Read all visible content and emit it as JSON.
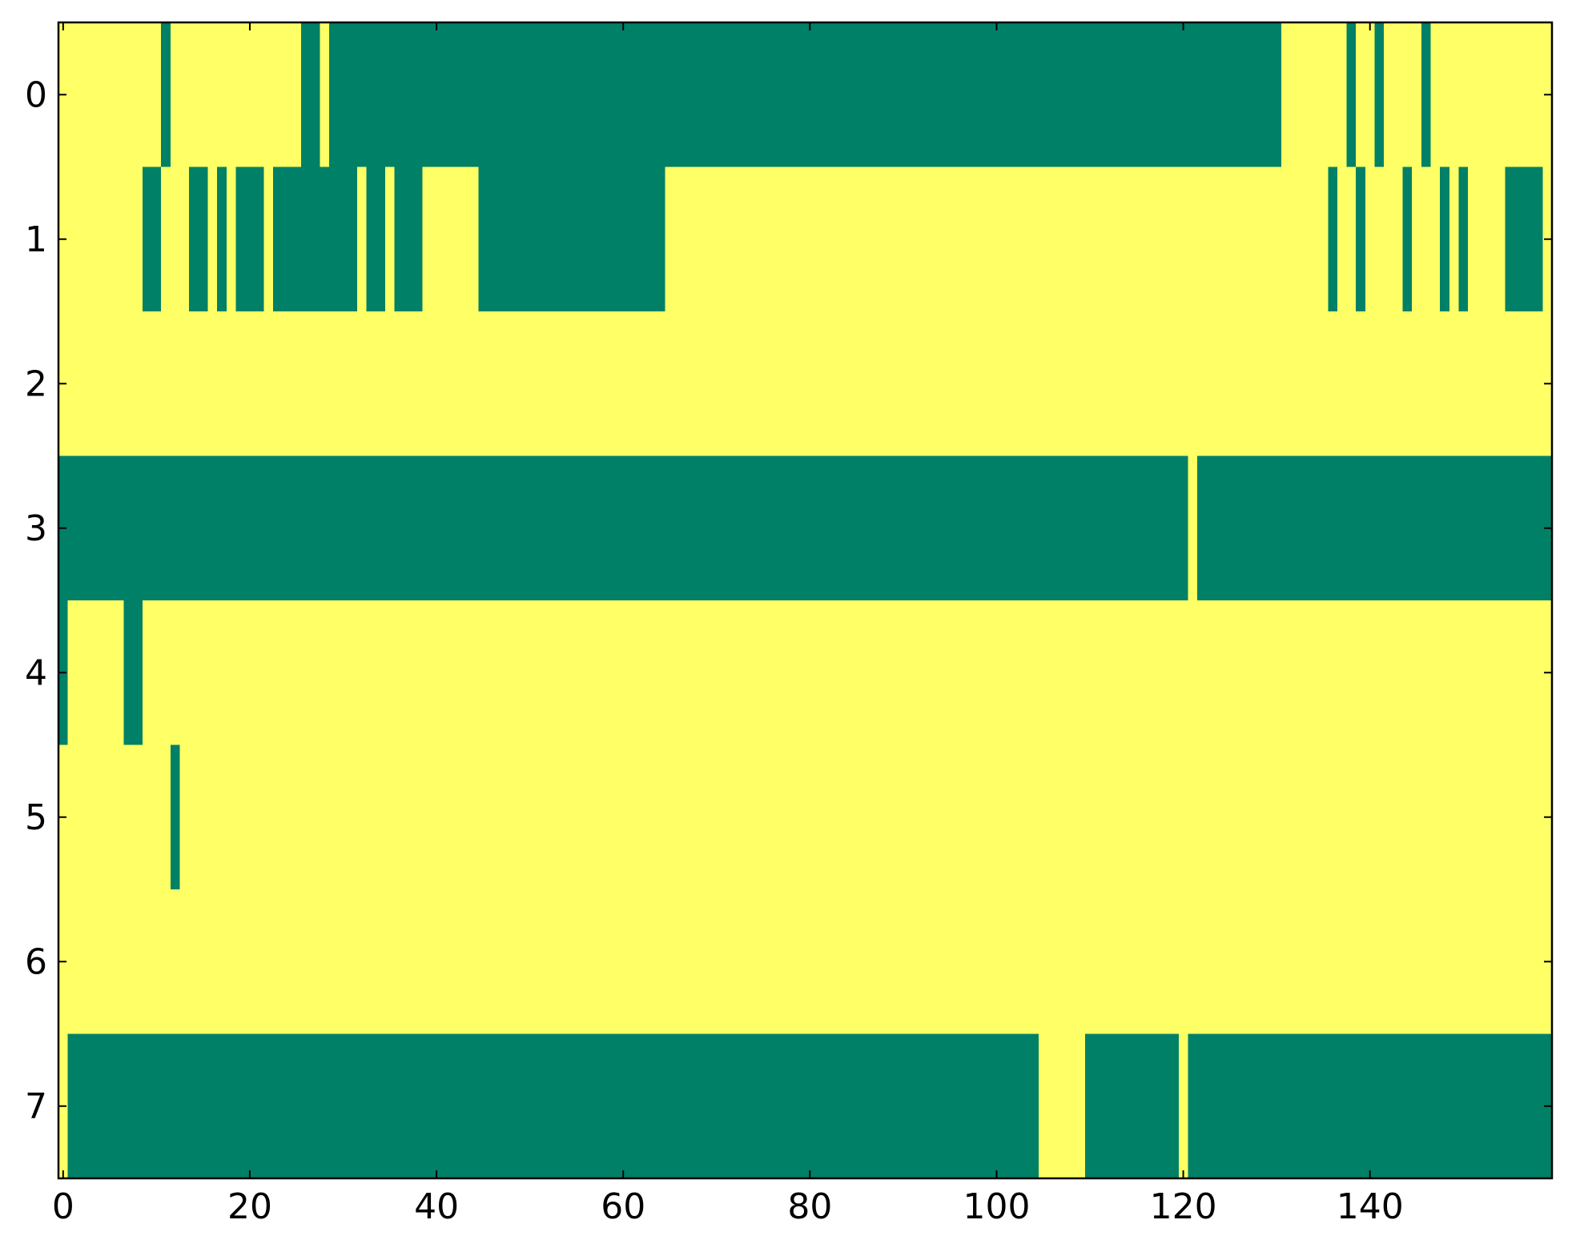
{
  "chart_data": {
    "type": "heatmap",
    "xlim": [
      -0.5,
      159.5
    ],
    "ylim": [
      7.5,
      -0.5
    ],
    "xticks": [
      0,
      20,
      40,
      60,
      80,
      100,
      120,
      140
    ],
    "yticks": [
      0,
      1,
      2,
      3,
      4,
      5,
      6,
      7
    ],
    "colormap": [
      "#008066",
      "#ffff66"
    ],
    "z": [
      [
        1,
        1,
        1,
        1,
        1,
        1,
        1,
        1,
        1,
        1,
        1,
        0,
        1,
        1,
        1,
        1,
        1,
        1,
        1,
        1,
        1,
        1,
        1,
        1,
        1,
        1,
        0,
        0,
        1,
        0,
        0,
        0,
        0,
        0,
        0,
        0,
        0,
        0,
        0,
        0,
        0,
        0,
        0,
        0,
        0,
        0,
        0,
        0,
        0,
        0,
        0,
        0,
        0,
        0,
        0,
        0,
        0,
        0,
        0,
        0,
        0,
        0,
        0,
        0,
        0,
        0,
        0,
        0,
        0,
        0,
        0,
        0,
        0,
        0,
        0,
        0,
        0,
        0,
        0,
        0,
        0,
        0,
        0,
        0,
        0,
        0,
        0,
        0,
        0,
        0,
        0,
        0,
        0,
        0,
        0,
        0,
        0,
        0,
        0,
        0,
        0,
        0,
        0,
        0,
        0,
        0,
        0,
        0,
        0,
        0,
        0,
        0,
        0,
        0,
        0,
        0,
        0,
        0,
        0,
        0,
        0,
        0,
        0,
        0,
        0,
        0,
        0,
        0,
        0,
        0,
        0,
        1,
        1,
        1,
        1,
        1,
        1,
        1,
        0,
        1,
        1,
        0,
        1,
        1,
        1,
        1,
        0,
        1,
        1,
        1,
        1,
        1,
        1,
        1,
        1,
        1,
        1,
        1,
        1,
        1
      ],
      [
        1,
        1,
        1,
        1,
        1,
        1,
        1,
        1,
        1,
        0,
        0,
        1,
        1,
        1,
        0,
        0,
        1,
        0,
        1,
        0,
        0,
        0,
        1,
        0,
        0,
        0,
        0,
        0,
        0,
        0,
        0,
        0,
        1,
        0,
        0,
        1,
        0,
        0,
        0,
        1,
        1,
        1,
        1,
        1,
        1,
        0,
        0,
        0,
        0,
        0,
        0,
        0,
        0,
        0,
        0,
        0,
        0,
        0,
        0,
        0,
        0,
        0,
        0,
        0,
        0,
        1,
        1,
        1,
        1,
        1,
        1,
        1,
        1,
        1,
        1,
        1,
        1,
        1,
        1,
        1,
        1,
        1,
        1,
        1,
        1,
        1,
        1,
        1,
        1,
        1,
        1,
        1,
        1,
        1,
        1,
        1,
        1,
        1,
        1,
        1,
        1,
        1,
        1,
        1,
        1,
        1,
        1,
        1,
        1,
        1,
        1,
        1,
        1,
        1,
        1,
        1,
        1,
        1,
        1,
        1,
        1,
        1,
        1,
        1,
        1,
        1,
        1,
        1,
        1,
        1,
        1,
        1,
        1,
        1,
        1,
        1,
        0,
        1,
        1,
        0,
        1,
        1,
        1,
        1,
        0,
        1,
        1,
        1,
        0,
        1,
        0,
        1,
        1,
        1,
        1,
        0,
        0,
        0,
        0,
        1
      ],
      [
        1,
        1,
        1,
        1,
        1,
        1,
        1,
        1,
        1,
        1,
        1,
        1,
        1,
        1,
        1,
        1,
        1,
        1,
        1,
        1,
        1,
        1,
        1,
        1,
        1,
        1,
        1,
        1,
        1,
        1,
        1,
        1,
        1,
        1,
        1,
        1,
        1,
        1,
        1,
        1,
        1,
        1,
        1,
        1,
        1,
        1,
        1,
        1,
        1,
        1,
        1,
        1,
        1,
        1,
        1,
        1,
        1,
        1,
        1,
        1,
        1,
        1,
        1,
        1,
        1,
        1,
        1,
        1,
        1,
        1,
        1,
        1,
        1,
        1,
        1,
        1,
        1,
        1,
        1,
        1,
        1,
        1,
        1,
        1,
        1,
        1,
        1,
        1,
        1,
        1,
        1,
        1,
        1,
        1,
        1,
        1,
        1,
        1,
        1,
        1,
        1,
        1,
        1,
        1,
        1,
        1,
        1,
        1,
        1,
        1,
        1,
        1,
        1,
        1,
        1,
        1,
        1,
        1,
        1,
        1,
        1,
        1,
        1,
        1,
        1,
        1,
        1,
        1,
        1,
        1,
        1,
        1,
        1,
        1,
        1,
        1,
        1,
        1,
        1,
        1,
        1,
        1,
        1,
        1,
        1,
        1,
        1,
        1,
        1,
        1,
        1,
        1,
        1,
        1,
        1,
        1,
        1,
        1,
        1,
        1
      ],
      [
        0,
        0,
        0,
        0,
        0,
        0,
        0,
        0,
        0,
        0,
        0,
        0,
        0,
        0,
        0,
        0,
        0,
        0,
        0,
        0,
        0,
        0,
        0,
        0,
        0,
        0,
        0,
        0,
        0,
        0,
        0,
        0,
        0,
        0,
        0,
        0,
        0,
        0,
        0,
        0,
        0,
        0,
        0,
        0,
        0,
        0,
        0,
        0,
        0,
        0,
        0,
        0,
        0,
        0,
        0,
        0,
        0,
        0,
        0,
        0,
        0,
        0,
        0,
        0,
        0,
        0,
        0,
        0,
        0,
        0,
        0,
        0,
        0,
        0,
        0,
        0,
        0,
        0,
        0,
        0,
        0,
        0,
        0,
        0,
        0,
        0,
        0,
        0,
        0,
        0,
        0,
        0,
        0,
        0,
        0,
        0,
        0,
        0,
        0,
        0,
        0,
        0,
        0,
        0,
        0,
        0,
        0,
        0,
        0,
        0,
        0,
        0,
        0,
        0,
        0,
        0,
        0,
        0,
        0,
        0,
        0,
        1,
        0,
        0,
        0,
        0,
        0,
        0,
        0,
        0,
        0,
        0,
        0,
        0,
        0,
        0,
        0,
        0,
        0,
        0,
        0,
        0,
        0,
        0,
        0,
        0,
        0,
        0,
        0,
        0,
        0,
        0,
        0,
        0,
        0,
        0,
        0,
        0,
        0,
        0
      ],
      [
        0,
        1,
        1,
        1,
        1,
        1,
        1,
        0,
        0,
        1,
        1,
        1,
        1,
        1,
        1,
        1,
        1,
        1,
        1,
        1,
        1,
        1,
        1,
        1,
        1,
        1,
        1,
        1,
        1,
        1,
        1,
        1,
        1,
        1,
        1,
        1,
        1,
        1,
        1,
        1,
        1,
        1,
        1,
        1,
        1,
        1,
        1,
        1,
        1,
        1,
        1,
        1,
        1,
        1,
        1,
        1,
        1,
        1,
        1,
        1,
        1,
        1,
        1,
        1,
        1,
        1,
        1,
        1,
        1,
        1,
        1,
        1,
        1,
        1,
        1,
        1,
        1,
        1,
        1,
        1,
        1,
        1,
        1,
        1,
        1,
        1,
        1,
        1,
        1,
        1,
        1,
        1,
        1,
        1,
        1,
        1,
        1,
        1,
        1,
        1,
        1,
        1,
        1,
        1,
        1,
        1,
        1,
        1,
        1,
        1,
        1,
        1,
        1,
        1,
        1,
        1,
        1,
        1,
        1,
        1,
        1,
        1,
        1,
        1,
        1,
        1,
        1,
        1,
        1,
        1,
        1,
        1,
        1,
        1,
        1,
        1,
        1,
        1,
        1,
        1,
        1,
        1,
        1,
        1,
        1,
        1,
        1,
        1,
        1,
        1,
        1,
        1,
        1,
        1,
        1,
        1,
        1,
        1,
        1,
        1
      ],
      [
        1,
        1,
        1,
        1,
        1,
        1,
        1,
        1,
        1,
        1,
        1,
        1,
        0,
        1,
        1,
        1,
        1,
        1,
        1,
        1,
        1,
        1,
        1,
        1,
        1,
        1,
        1,
        1,
        1,
        1,
        1,
        1,
        1,
        1,
        1,
        1,
        1,
        1,
        1,
        1,
        1,
        1,
        1,
        1,
        1,
        1,
        1,
        1,
        1,
        1,
        1,
        1,
        1,
        1,
        1,
        1,
        1,
        1,
        1,
        1,
        1,
        1,
        1,
        1,
        1,
        1,
        1,
        1,
        1,
        1,
        1,
        1,
        1,
        1,
        1,
        1,
        1,
        1,
        1,
        1,
        1,
        1,
        1,
        1,
        1,
        1,
        1,
        1,
        1,
        1,
        1,
        1,
        1,
        1,
        1,
        1,
        1,
        1,
        1,
        1,
        1,
        1,
        1,
        1,
        1,
        1,
        1,
        1,
        1,
        1,
        1,
        1,
        1,
        1,
        1,
        1,
        1,
        1,
        1,
        1,
        1,
        1,
        1,
        1,
        1,
        1,
        1,
        1,
        1,
        1,
        1,
        1,
        1,
        1,
        1,
        1,
        1,
        1,
        1,
        1,
        1,
        1,
        1,
        1,
        1,
        1,
        1,
        1,
        1,
        1,
        1,
        1,
        1,
        1,
        1,
        1,
        1,
        1,
        1,
        1
      ],
      [
        1,
        1,
        1,
        1,
        1,
        1,
        1,
        1,
        1,
        1,
        1,
        1,
        1,
        1,
        1,
        1,
        1,
        1,
        1,
        1,
        1,
        1,
        1,
        1,
        1,
        1,
        1,
        1,
        1,
        1,
        1,
        1,
        1,
        1,
        1,
        1,
        1,
        1,
        1,
        1,
        1,
        1,
        1,
        1,
        1,
        1,
        1,
        1,
        1,
        1,
        1,
        1,
        1,
        1,
        1,
        1,
        1,
        1,
        1,
        1,
        1,
        1,
        1,
        1,
        1,
        1,
        1,
        1,
        1,
        1,
        1,
        1,
        1,
        1,
        1,
        1,
        1,
        1,
        1,
        1,
        1,
        1,
        1,
        1,
        1,
        1,
        1,
        1,
        1,
        1,
        1,
        1,
        1,
        1,
        1,
        1,
        1,
        1,
        1,
        1,
        1,
        1,
        1,
        1,
        1,
        1,
        1,
        1,
        1,
        1,
        1,
        1,
        1,
        1,
        1,
        1,
        1,
        1,
        1,
        1,
        1,
        1,
        1,
        1,
        1,
        1,
        1,
        1,
        1,
        1,
        1,
        1,
        1,
        1,
        1,
        1,
        1,
        1,
        1,
        1,
        1,
        1,
        1,
        1,
        1,
        1,
        1,
        1,
        1,
        1,
        1,
        1,
        1,
        1,
        1,
        1,
        1,
        1,
        1,
        1
      ],
      [
        1,
        0,
        0,
        0,
        0,
        0,
        0,
        0,
        0,
        0,
        0,
        0,
        0,
        0,
        0,
        0,
        0,
        0,
        0,
        0,
        0,
        0,
        0,
        0,
        0,
        0,
        0,
        0,
        0,
        0,
        0,
        0,
        0,
        0,
        0,
        0,
        0,
        0,
        0,
        0,
        0,
        0,
        0,
        0,
        0,
        0,
        0,
        0,
        0,
        0,
        0,
        0,
        0,
        0,
        0,
        0,
        0,
        0,
        0,
        0,
        0,
        0,
        0,
        0,
        0,
        0,
        0,
        0,
        0,
        0,
        0,
        0,
        0,
        0,
        0,
        0,
        0,
        0,
        0,
        0,
        0,
        0,
        0,
        0,
        0,
        0,
        0,
        0,
        0,
        0,
        0,
        0,
        0,
        0,
        0,
        0,
        0,
        0,
        0,
        0,
        0,
        0,
        0,
        0,
        0,
        1,
        1,
        1,
        1,
        1,
        0,
        0,
        0,
        0,
        0,
        0,
        0,
        0,
        0,
        0,
        1,
        0,
        0,
        0,
        0,
        0,
        0,
        0,
        0,
        0,
        0,
        0,
        0,
        0,
        0,
        0,
        0,
        0,
        0,
        0,
        0,
        0,
        0,
        0,
        0,
        0,
        0,
        0,
        0,
        0,
        0,
        0,
        0,
        0,
        0,
        0,
        0,
        0,
        0,
        0
      ]
    ]
  }
}
